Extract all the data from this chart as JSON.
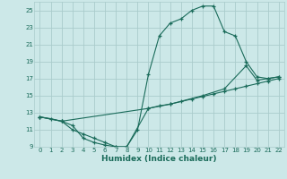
{
  "xlabel": "Humidex (Indice chaleur)",
  "bg_color": "#cce8e8",
  "grid_color": "#aacccc",
  "line_color": "#1a6b5a",
  "xlim": [
    -0.5,
    22.5
  ],
  "ylim": [
    9,
    26
  ],
  "xticks": [
    0,
    1,
    2,
    3,
    4,
    5,
    6,
    7,
    8,
    9,
    10,
    11,
    12,
    13,
    14,
    15,
    16,
    17,
    18,
    19,
    20,
    21,
    22
  ],
  "yticks": [
    9,
    11,
    13,
    15,
    17,
    19,
    21,
    23,
    25
  ],
  "curve1_x": [
    0,
    1,
    2,
    3,
    4,
    5,
    6,
    7,
    8,
    9,
    10,
    11,
    12,
    13,
    14,
    15,
    16,
    17,
    18,
    19,
    20,
    21,
    22
  ],
  "curve1_y": [
    12.5,
    12.3,
    12.0,
    11.0,
    10.5,
    10.0,
    9.5,
    9.0,
    9.0,
    11.0,
    17.5,
    22.0,
    23.5,
    24.0,
    25.0,
    25.5,
    25.5,
    22.5,
    22.0,
    19.0,
    17.2,
    17.0,
    17.2
  ],
  "curve2_x": [
    0,
    2,
    3,
    4,
    5,
    6,
    7,
    8,
    10,
    11,
    12,
    13,
    14,
    15,
    16,
    17,
    18,
    19,
    20,
    21,
    22
  ],
  "curve2_y": [
    12.5,
    12.0,
    11.5,
    10.0,
    9.5,
    9.2,
    9.0,
    9.0,
    13.5,
    13.8,
    14.0,
    14.3,
    14.6,
    14.9,
    15.2,
    15.5,
    15.8,
    16.1,
    16.4,
    16.7,
    17.0
  ],
  "curve3_x": [
    0,
    2,
    10,
    12,
    15,
    17,
    19,
    20,
    21,
    22
  ],
  "curve3_y": [
    12.5,
    12.0,
    13.5,
    14.0,
    15.0,
    15.8,
    18.5,
    16.8,
    17.0,
    17.2
  ]
}
